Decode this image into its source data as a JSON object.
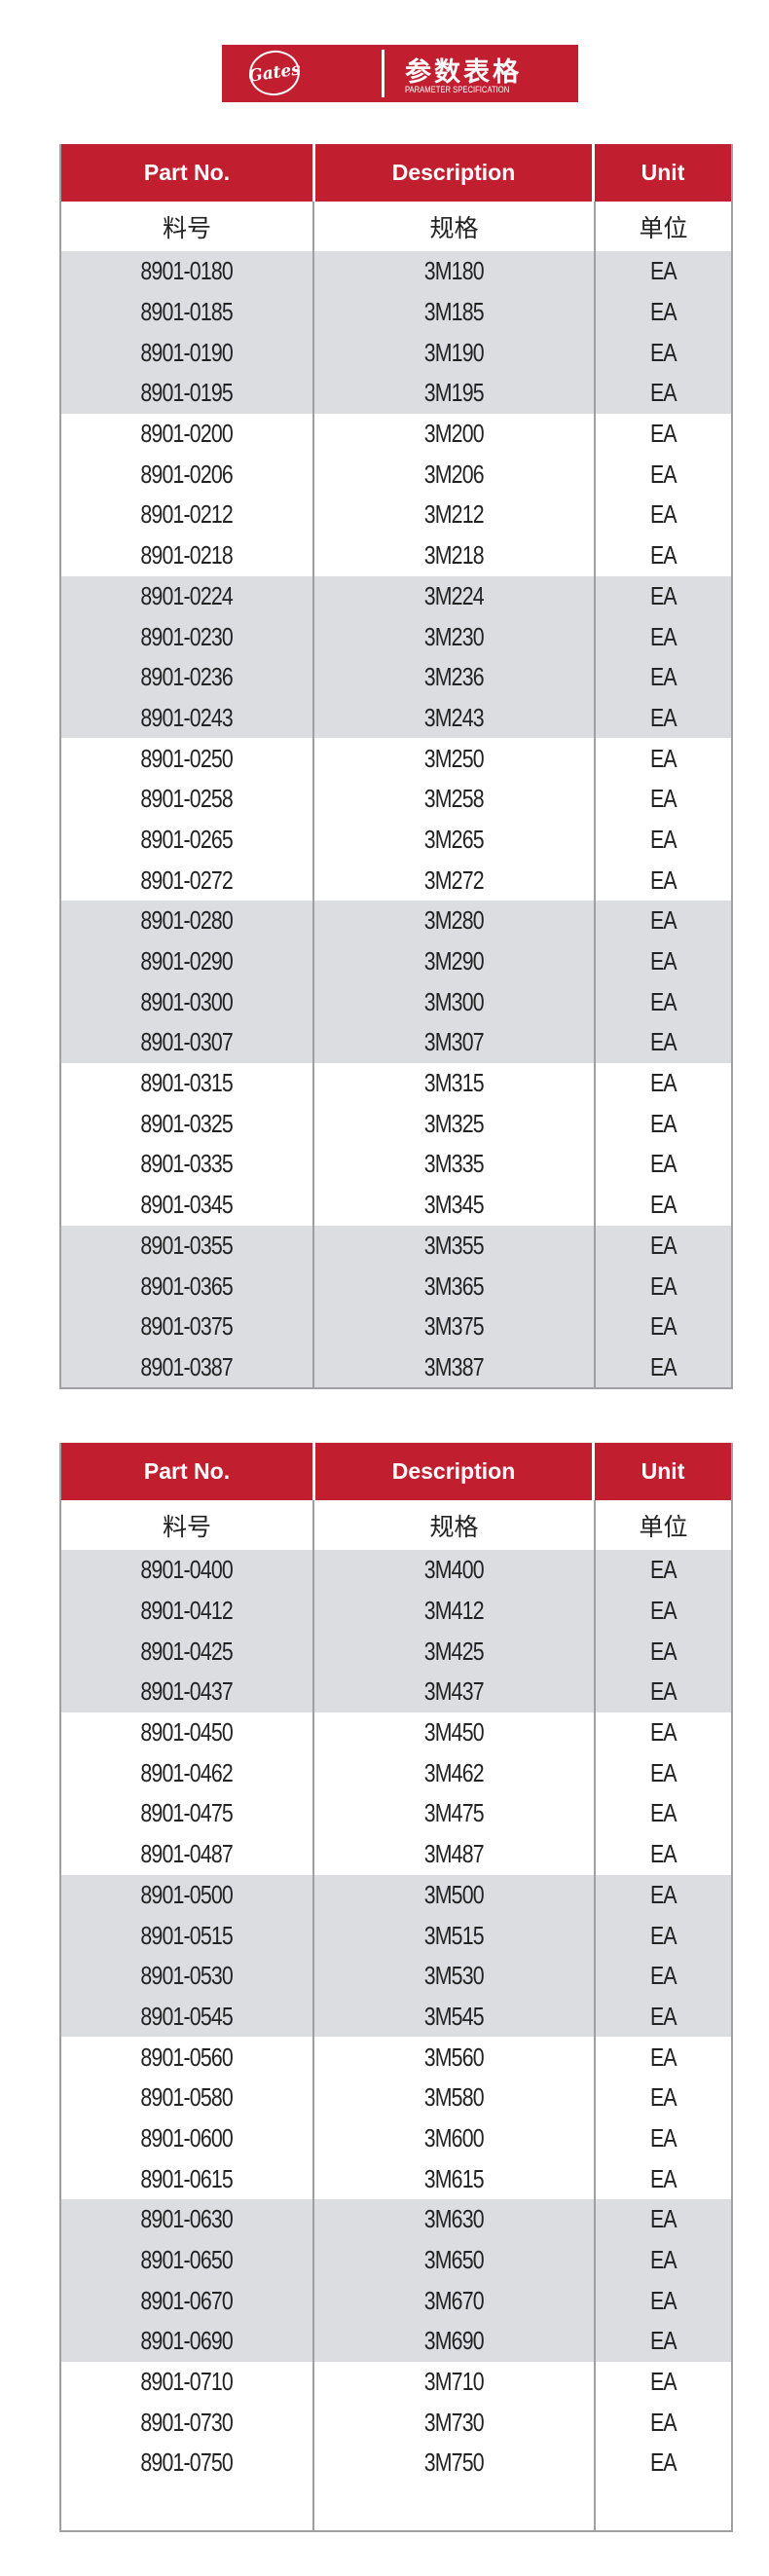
{
  "banner": {
    "logo_text": "Gates",
    "title": "参数表格",
    "subtitle": "PARAMETER SPECIFICATION",
    "color": "#c11f30"
  },
  "columns": {
    "en": [
      "Part No.",
      "Description",
      "Unit"
    ],
    "cn": [
      "料号",
      "规格",
      "单位"
    ]
  },
  "tables": [
    {
      "groups": [
        {
          "shade": "grey",
          "rows": [
            [
              "8901-0180",
              "3M180",
              "EA"
            ],
            [
              "8901-0185",
              "3M185",
              "EA"
            ],
            [
              "8901-0190",
              "3M190",
              "EA"
            ],
            [
              "8901-0195",
              "3M195",
              "EA"
            ]
          ]
        },
        {
          "shade": "white",
          "rows": [
            [
              "8901-0200",
              "3M200",
              "EA"
            ],
            [
              "8901-0206",
              "3M206",
              "EA"
            ],
            [
              "8901-0212",
              "3M212",
              "EA"
            ],
            [
              "8901-0218",
              "3M218",
              "EA"
            ]
          ]
        },
        {
          "shade": "grey",
          "rows": [
            [
              "8901-0224",
              "3M224",
              "EA"
            ],
            [
              "8901-0230",
              "3M230",
              "EA"
            ],
            [
              "8901-0236",
              "3M236",
              "EA"
            ],
            [
              "8901-0243",
              "3M243",
              "EA"
            ]
          ]
        },
        {
          "shade": "white",
          "rows": [
            [
              "8901-0250",
              "3M250",
              "EA"
            ],
            [
              "8901-0258",
              "3M258",
              "EA"
            ],
            [
              "8901-0265",
              "3M265",
              "EA"
            ],
            [
              "8901-0272",
              "3M272",
              "EA"
            ]
          ]
        },
        {
          "shade": "grey",
          "rows": [
            [
              "8901-0280",
              "3M280",
              "EA"
            ],
            [
              "8901-0290",
              "3M290",
              "EA"
            ],
            [
              "8901-0300",
              "3M300",
              "EA"
            ],
            [
              "8901-0307",
              "3M307",
              "EA"
            ]
          ]
        },
        {
          "shade": "white",
          "rows": [
            [
              "8901-0315",
              "3M315",
              "EA"
            ],
            [
              "8901-0325",
              "3M325",
              "EA"
            ],
            [
              "8901-0335",
              "3M335",
              "EA"
            ],
            [
              "8901-0345",
              "3M345",
              "EA"
            ]
          ]
        },
        {
          "shade": "grey",
          "rows": [
            [
              "8901-0355",
              "3M355",
              "EA"
            ],
            [
              "8901-0365",
              "3M365",
              "EA"
            ],
            [
              "8901-0375",
              "3M375",
              "EA"
            ],
            [
              "8901-0387",
              "3M387",
              "EA"
            ]
          ]
        }
      ]
    },
    {
      "groups": [
        {
          "shade": "grey",
          "rows": [
            [
              "8901-0400",
              "3M400",
              "EA"
            ],
            [
              "8901-0412",
              "3M412",
              "EA"
            ],
            [
              "8901-0425",
              "3M425",
              "EA"
            ],
            [
              "8901-0437",
              "3M437",
              "EA"
            ]
          ]
        },
        {
          "shade": "white",
          "rows": [
            [
              "8901-0450",
              "3M450",
              "EA"
            ],
            [
              "8901-0462",
              "3M462",
              "EA"
            ],
            [
              "8901-0475",
              "3M475",
              "EA"
            ],
            [
              "8901-0487",
              "3M487",
              "EA"
            ]
          ]
        },
        {
          "shade": "grey",
          "rows": [
            [
              "8901-0500",
              "3M500",
              "EA"
            ],
            [
              "8901-0515",
              "3M515",
              "EA"
            ],
            [
              "8901-0530",
              "3M530",
              "EA"
            ],
            [
              "8901-0545",
              "3M545",
              "EA"
            ]
          ]
        },
        {
          "shade": "white",
          "rows": [
            [
              "8901-0560",
              "3M560",
              "EA"
            ],
            [
              "8901-0580",
              "3M580",
              "EA"
            ],
            [
              "8901-0600",
              "3M600",
              "EA"
            ],
            [
              "8901-0615",
              "3M615",
              "EA"
            ]
          ]
        },
        {
          "shade": "grey",
          "rows": [
            [
              "8901-0630",
              "3M630",
              "EA"
            ],
            [
              "8901-0650",
              "3M650",
              "EA"
            ],
            [
              "8901-0670",
              "3M670",
              "EA"
            ],
            [
              "8901-0690",
              "3M690",
              "EA"
            ]
          ]
        },
        {
          "shade": "white",
          "rows": [
            [
              "8901-0710",
              "3M710",
              "EA"
            ],
            [
              "8901-0730",
              "3M730",
              "EA"
            ],
            [
              "8901-0750",
              "3M750",
              "EA"
            ]
          ]
        }
      ]
    }
  ]
}
